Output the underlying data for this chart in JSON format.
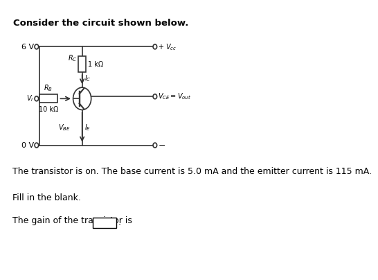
{
  "title": "Consider the circuit shown below.",
  "line1": "The transistor is on. The base current is 5.0 mA and the emitter current is 115 mA.",
  "line2": "Fill in the blank.",
  "line3": "The gain of the transistor is",
  "bg_color": "#ffffff",
  "text_color": "#000000",
  "circuit_color": "#333333",
  "label_6V": "6 V",
  "label_0V": "0 V",
  "label_Rc": "1 kΩ",
  "label_Rb": "10 kΩ"
}
